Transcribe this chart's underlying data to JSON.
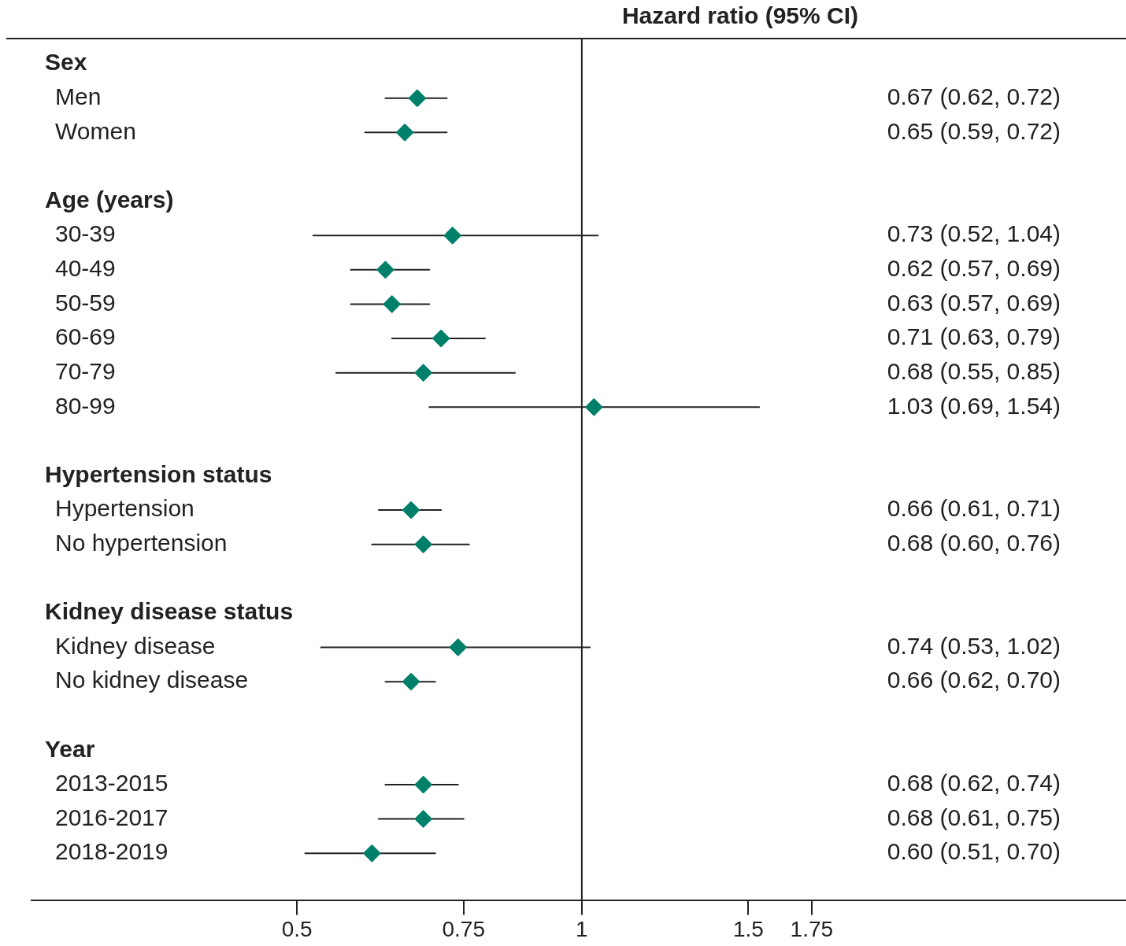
{
  "chart_data": {
    "type": "scatter",
    "orientation": "horizontal",
    "title": "Hazard ratio (95% CI)",
    "categories": [
      "Sex",
      "Men",
      "Women",
      null,
      "Age (years)",
      "30-39",
      "40-49",
      "50-59",
      "60-69",
      "70-79",
      "80-99",
      null,
      "Hypertension status",
      "Hypertension",
      "No hypertension",
      null,
      "Kidney disease status",
      "Kidney disease",
      "No kidney disease",
      null,
      "Year",
      "2013-2015",
      "2016-2017",
      "2018-2019"
    ],
    "values": [
      null,
      0.67,
      0.65,
      null,
      null,
      0.73,
      0.62,
      0.63,
      0.71,
      0.68,
      1.03,
      null,
      null,
      0.66,
      0.68,
      null,
      null,
      0.74,
      0.66,
      null,
      null,
      0.68,
      0.68,
      0.6
    ],
    "errors": [
      null,
      [
        0.62,
        0.72
      ],
      [
        0.59,
        0.72
      ],
      null,
      null,
      [
        0.52,
        1.04
      ],
      [
        0.57,
        0.69
      ],
      [
        0.57,
        0.69
      ],
      [
        0.63,
        0.79
      ],
      [
        0.55,
        0.85
      ],
      [
        0.69,
        1.54
      ],
      null,
      null,
      [
        0.61,
        0.71
      ],
      [
        0.6,
        0.76
      ],
      null,
      null,
      [
        0.53,
        1.02
      ],
      [
        0.62,
        0.7
      ],
      null,
      null,
      [
        0.62,
        0.74
      ],
      [
        0.61,
        0.75
      ],
      [
        0.51,
        0.7
      ]
    ],
    "value_labels": [
      null,
      "0.67 (0.62, 0.72)",
      "0.65 (0.59, 0.72)",
      null,
      null,
      "0.73 (0.52, 1.04)",
      "0.62 (0.57, 0.69)",
      "0.63 (0.57, 0.69)",
      "0.71 (0.63, 0.79)",
      "0.68 (0.55, 0.85)",
      "1.03 (0.69, 1.54)",
      null,
      null,
      "0.66 (0.61, 0.71)",
      "0.68 (0.60, 0.76)",
      null,
      null,
      "0.74 (0.53, 1.02)",
      "0.66 (0.62, 0.70)",
      null,
      null,
      "0.68 (0.62, 0.74)",
      "0.68 (0.61, 0.75)",
      "0.60 (0.51, 0.70)"
    ],
    "color": "#00806a",
    "marker": "diamond",
    "log": "x",
    "xlim": [
      0.262,
      1.96
    ],
    "xticks": [
      0.5,
      0.75,
      1,
      1.5,
      1.75
    ],
    "ref_lines": [
      {
        "axis": "x",
        "value": 1,
        "color": "#222222"
      }
    ],
    "grid": false,
    "legend": false
  }
}
